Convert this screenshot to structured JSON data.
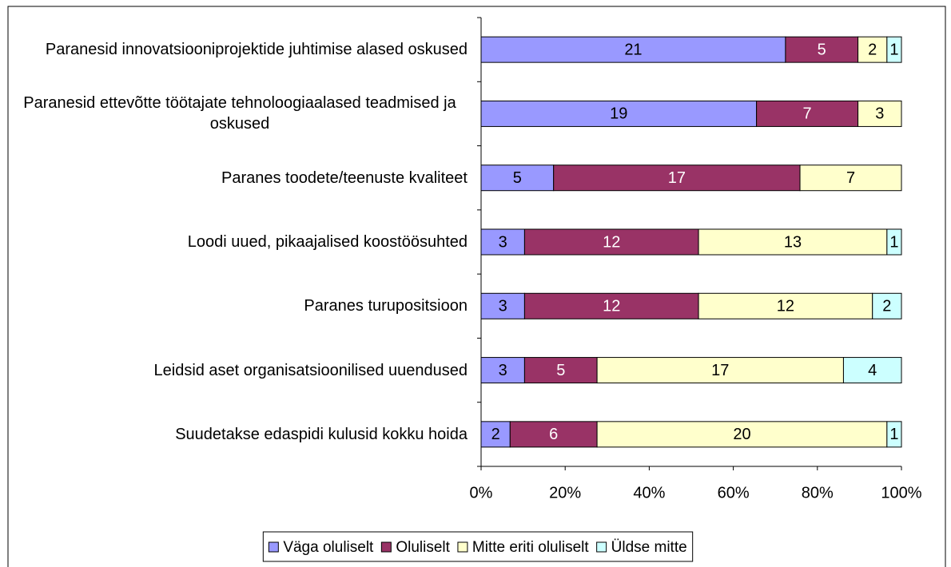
{
  "chart_data": {
    "type": "bar_stacked_100_horizontal",
    "categories": [
      "Paranesid innovatsiooniprojektide juhtimise alased oskused",
      "Paranesid ettevõtte töötajate tehnoloogiaalased teadmised ja oskused",
      "Paranes toodete/teenuste kvaliteet",
      "Loodi uued, pikaajalised koostöösuhted",
      "Paranes turupositsioon",
      "Leidsid aset organisatsioonilised uuendused",
      "Suudetakse edaspidi kulusid kokku hoida"
    ],
    "series": [
      {
        "name": "Väga oluliselt",
        "color": "#9999ff",
        "values": [
          21,
          19,
          5,
          3,
          3,
          3,
          2
        ]
      },
      {
        "name": "Oluliselt",
        "color": "#993366",
        "values": [
          5,
          7,
          17,
          12,
          12,
          5,
          6
        ]
      },
      {
        "name": "Mitte eriti oluliselt",
        "color": "#ffffcc",
        "values": [
          2,
          3,
          7,
          13,
          12,
          17,
          20
        ]
      },
      {
        "name": "Üldse mitte",
        "color": "#ccffff",
        "values": [
          1,
          null,
          null,
          1,
          2,
          4,
          1
        ]
      }
    ],
    "xlim": [
      0,
      100
    ],
    "xticks": [
      {
        "value": 0,
        "label": "0%"
      },
      {
        "value": 20,
        "label": "20%"
      },
      {
        "value": 40,
        "label": "40%"
      },
      {
        "value": 60,
        "label": "60%"
      },
      {
        "value": 80,
        "label": "80%"
      },
      {
        "value": 100,
        "label": "100%"
      }
    ],
    "legend": "bottom"
  }
}
